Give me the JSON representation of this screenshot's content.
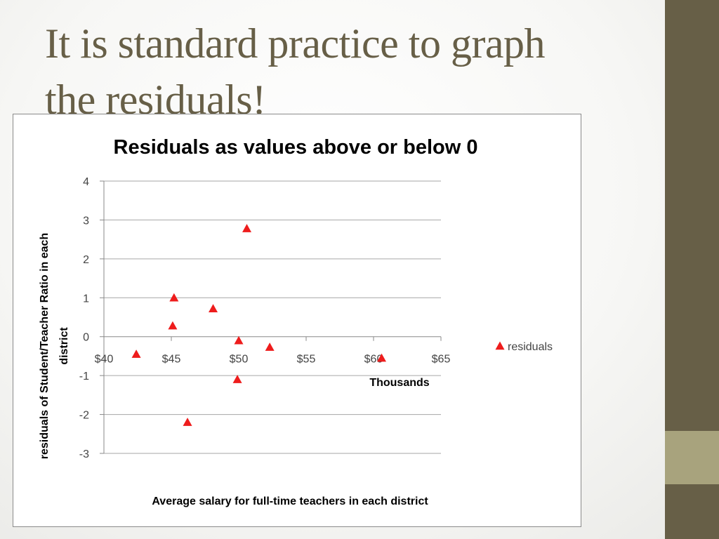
{
  "slide": {
    "title_line1": "It is standard practice to graph",
    "title_line2": "the residuals!",
    "accent_color": "#675f47",
    "accent_light_color": "#a8a37d"
  },
  "chart_data": {
    "type": "scatter",
    "title": "Residuals as values above or below 0",
    "xlabel": "Average salary for full-time teachers in each district",
    "x_unit_label": "Thousands",
    "ylabel_line1": "residuals of Student/Teacher Ratio in each",
    "ylabel_line2": "district",
    "xlim": [
      40,
      65
    ],
    "ylim": [
      -3,
      4
    ],
    "x_ticks": [
      40,
      45,
      50,
      55,
      60,
      65
    ],
    "x_tick_labels": [
      "$40",
      "$45",
      "$50",
      "$55",
      "$60",
      "$65"
    ],
    "y_ticks": [
      -3,
      -2,
      -1,
      0,
      1,
      2,
      3,
      4
    ],
    "y_tick_labels": [
      "-3",
      "-2",
      "-1",
      "0",
      "1",
      "2",
      "3",
      "4"
    ],
    "grid": "horizontal",
    "legend_position": "right",
    "marker": "triangle",
    "marker_color": "#ee1c1c",
    "series": [
      {
        "name": "residuals",
        "points": [
          {
            "x": 42.4,
            "y": -0.45
          },
          {
            "x": 45.2,
            "y": 1.0
          },
          {
            "x": 45.1,
            "y": 0.28
          },
          {
            "x": 46.2,
            "y": -2.2
          },
          {
            "x": 48.1,
            "y": 0.72
          },
          {
            "x": 49.9,
            "y": -1.1
          },
          {
            "x": 50.0,
            "y": -0.1
          },
          {
            "x": 50.6,
            "y": 2.78
          },
          {
            "x": 52.3,
            "y": -0.27
          },
          {
            "x": 60.6,
            "y": -0.55
          }
        ]
      }
    ]
  }
}
